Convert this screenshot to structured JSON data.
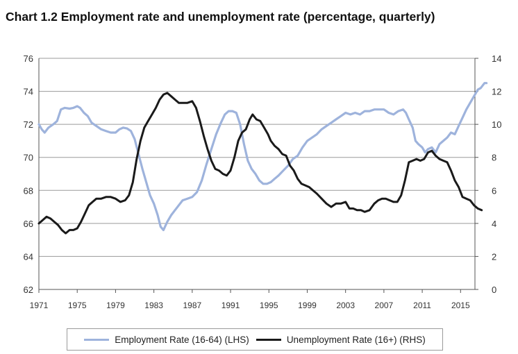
{
  "chart_data": {
    "type": "line",
    "title": "Chart 1.2 Employment rate and unemployment rate (percentage, quarterly)",
    "x_tick_labels": [
      "1971",
      "1975",
      "1979",
      "1983",
      "1987",
      "1991",
      "1995",
      "1999",
      "2003",
      "2007",
      "2011",
      "2015"
    ],
    "x_ticks": [
      1971,
      1975,
      1979,
      1983,
      1987,
      1991,
      1995,
      1999,
      2003,
      2007,
      2011,
      2015
    ],
    "xlim": [
      1971,
      2016.5
    ],
    "y_left": {
      "lim": [
        62,
        76
      ],
      "ticks": [
        62,
        64,
        66,
        68,
        70,
        72,
        74,
        76
      ],
      "tick_labels": [
        "62",
        "64",
        "66",
        "68",
        "70",
        "72",
        "74",
        "76"
      ]
    },
    "y_right": {
      "lim": [
        0,
        14
      ],
      "ticks": [
        0,
        2,
        4,
        6,
        8,
        10,
        12,
        14
      ],
      "tick_labels": [
        "0",
        "2",
        "4",
        "6",
        "8",
        "10",
        "12",
        "14"
      ]
    },
    "grid": "horizontal",
    "legend_position": "bottom",
    "colors": {
      "employment": "#9eb3dc",
      "unemployment": "#1a1a1a",
      "grid": "#9a9a9a"
    },
    "series": [
      {
        "name": "Employment Rate (16-64) (LHS)",
        "axis": "left",
        "points": [
          [
            1971.0,
            72.0
          ],
          [
            1971.3,
            71.7
          ],
          [
            1971.6,
            71.5
          ],
          [
            1972.0,
            71.8
          ],
          [
            1972.5,
            72.0
          ],
          [
            1972.9,
            72.2
          ],
          [
            1973.3,
            72.9
          ],
          [
            1973.7,
            73.0
          ],
          [
            1974.2,
            72.95
          ],
          [
            1974.6,
            73.0
          ],
          [
            1975.0,
            73.1
          ],
          [
            1975.3,
            73.0
          ],
          [
            1975.7,
            72.7
          ],
          [
            1976.1,
            72.5
          ],
          [
            1976.5,
            72.1
          ],
          [
            1977.0,
            71.9
          ],
          [
            1977.5,
            71.7
          ],
          [
            1978.0,
            71.6
          ],
          [
            1978.5,
            71.5
          ],
          [
            1979.0,
            71.5
          ],
          [
            1979.4,
            71.7
          ],
          [
            1979.8,
            71.8
          ],
          [
            1980.2,
            71.75
          ],
          [
            1980.6,
            71.6
          ],
          [
            1981.0,
            71.1
          ],
          [
            1981.4,
            70.2
          ],
          [
            1981.8,
            69.3
          ],
          [
            1982.2,
            68.5
          ],
          [
            1982.6,
            67.7
          ],
          [
            1983.0,
            67.2
          ],
          [
            1983.4,
            66.5
          ],
          [
            1983.7,
            65.8
          ],
          [
            1984.0,
            65.6
          ],
          [
            1984.4,
            66.1
          ],
          [
            1984.8,
            66.5
          ],
          [
            1985.2,
            66.8
          ],
          [
            1985.6,
            67.1
          ],
          [
            1986.0,
            67.4
          ],
          [
            1986.5,
            67.5
          ],
          [
            1987.0,
            67.6
          ],
          [
            1987.5,
            67.9
          ],
          [
            1988.0,
            68.6
          ],
          [
            1988.5,
            69.6
          ],
          [
            1989.0,
            70.5
          ],
          [
            1989.5,
            71.4
          ],
          [
            1990.0,
            72.1
          ],
          [
            1990.4,
            72.6
          ],
          [
            1990.8,
            72.8
          ],
          [
            1991.2,
            72.8
          ],
          [
            1991.6,
            72.7
          ],
          [
            1992.0,
            72.0
          ],
          [
            1992.4,
            70.8
          ],
          [
            1992.8,
            69.8
          ],
          [
            1993.2,
            69.3
          ],
          [
            1993.6,
            69.0
          ],
          [
            1994.0,
            68.6
          ],
          [
            1994.4,
            68.4
          ],
          [
            1994.8,
            68.4
          ],
          [
            1995.2,
            68.5
          ],
          [
            1995.6,
            68.7
          ],
          [
            1996.0,
            68.9
          ],
          [
            1996.5,
            69.2
          ],
          [
            1997.0,
            69.5
          ],
          [
            1997.5,
            69.9
          ],
          [
            1998.0,
            70.1
          ],
          [
            1998.5,
            70.6
          ],
          [
            1999.0,
            71.0
          ],
          [
            1999.5,
            71.2
          ],
          [
            2000.0,
            71.4
          ],
          [
            2000.5,
            71.7
          ],
          [
            2001.0,
            71.9
          ],
          [
            2001.5,
            72.1
          ],
          [
            2002.0,
            72.3
          ],
          [
            2002.5,
            72.5
          ],
          [
            2003.0,
            72.7
          ],
          [
            2003.5,
            72.6
          ],
          [
            2004.0,
            72.7
          ],
          [
            2004.5,
            72.6
          ],
          [
            2005.0,
            72.8
          ],
          [
            2005.5,
            72.8
          ],
          [
            2006.0,
            72.9
          ],
          [
            2006.5,
            72.9
          ],
          [
            2007.0,
            72.9
          ],
          [
            2007.5,
            72.7
          ],
          [
            2008.0,
            72.6
          ],
          [
            2008.5,
            72.8
          ],
          [
            2009.0,
            72.9
          ],
          [
            2009.3,
            72.7
          ],
          [
            2009.6,
            72.3
          ],
          [
            2010.0,
            71.8
          ],
          [
            2010.3,
            71.0
          ],
          [
            2010.6,
            70.8
          ],
          [
            2011.0,
            70.6
          ],
          [
            2011.3,
            70.3
          ],
          [
            2011.6,
            70.5
          ],
          [
            2012.0,
            70.6
          ],
          [
            2012.4,
            70.3
          ],
          [
            2012.8,
            70.8
          ],
          [
            2013.2,
            71.0
          ],
          [
            2013.6,
            71.2
          ],
          [
            2014.0,
            71.5
          ],
          [
            2014.4,
            71.4
          ],
          [
            2014.8,
            71.9
          ],
          [
            2015.2,
            72.4
          ],
          [
            2015.6,
            72.9
          ],
          [
            2016.0,
            73.3
          ],
          [
            2016.4,
            73.7
          ],
          [
            2016.8,
            74.1
          ],
          [
            2017.1,
            74.2
          ],
          [
            2017.5,
            74.5
          ],
          [
            2017.7,
            74.5
          ]
        ]
      },
      {
        "name": "Unemployment Rate (16+) (RHS)",
        "axis": "right",
        "points": [
          [
            1971.0,
            4.0
          ],
          [
            1971.4,
            4.2
          ],
          [
            1971.8,
            4.4
          ],
          [
            1972.2,
            4.3
          ],
          [
            1972.6,
            4.1
          ],
          [
            1973.0,
            3.9
          ],
          [
            1973.4,
            3.6
          ],
          [
            1973.8,
            3.4
          ],
          [
            1974.2,
            3.6
          ],
          [
            1974.6,
            3.6
          ],
          [
            1975.0,
            3.7
          ],
          [
            1975.4,
            4.1
          ],
          [
            1975.8,
            4.6
          ],
          [
            1976.2,
            5.1
          ],
          [
            1976.6,
            5.3
          ],
          [
            1977.0,
            5.5
          ],
          [
            1977.5,
            5.5
          ],
          [
            1978.0,
            5.6
          ],
          [
            1978.5,
            5.6
          ],
          [
            1979.0,
            5.5
          ],
          [
            1979.5,
            5.3
          ],
          [
            1980.0,
            5.4
          ],
          [
            1980.4,
            5.7
          ],
          [
            1980.8,
            6.5
          ],
          [
            1981.2,
            7.9
          ],
          [
            1981.6,
            9.0
          ],
          [
            1982.0,
            9.8
          ],
          [
            1982.4,
            10.2
          ],
          [
            1982.8,
            10.6
          ],
          [
            1983.2,
            11.0
          ],
          [
            1983.6,
            11.5
          ],
          [
            1984.0,
            11.8
          ],
          [
            1984.4,
            11.9
          ],
          [
            1984.8,
            11.7
          ],
          [
            1985.2,
            11.5
          ],
          [
            1985.6,
            11.3
          ],
          [
            1986.0,
            11.3
          ],
          [
            1986.5,
            11.3
          ],
          [
            1987.0,
            11.4
          ],
          [
            1987.4,
            11.0
          ],
          [
            1987.8,
            10.2
          ],
          [
            1988.2,
            9.3
          ],
          [
            1988.6,
            8.5
          ],
          [
            1989.0,
            7.8
          ],
          [
            1989.4,
            7.3
          ],
          [
            1989.8,
            7.2
          ],
          [
            1990.2,
            7.0
          ],
          [
            1990.6,
            6.9
          ],
          [
            1991.0,
            7.2
          ],
          [
            1991.4,
            8.0
          ],
          [
            1991.8,
            9.0
          ],
          [
            1992.2,
            9.5
          ],
          [
            1992.6,
            9.7
          ],
          [
            1993.0,
            10.3
          ],
          [
            1993.3,
            10.6
          ],
          [
            1993.7,
            10.3
          ],
          [
            1994.1,
            10.2
          ],
          [
            1994.5,
            9.8
          ],
          [
            1994.9,
            9.4
          ],
          [
            1995.2,
            9.0
          ],
          [
            1995.6,
            8.7
          ],
          [
            1996.0,
            8.5
          ],
          [
            1996.4,
            8.2
          ],
          [
            1996.8,
            8.1
          ],
          [
            1997.2,
            7.5
          ],
          [
            1997.6,
            7.2
          ],
          [
            1998.0,
            6.7
          ],
          [
            1998.4,
            6.4
          ],
          [
            1998.8,
            6.3
          ],
          [
            1999.2,
            6.2
          ],
          [
            1999.6,
            6.0
          ],
          [
            2000.0,
            5.8
          ],
          [
            2000.5,
            5.5
          ],
          [
            2001.0,
            5.2
          ],
          [
            2001.5,
            5.0
          ],
          [
            2002.0,
            5.2
          ],
          [
            2002.5,
            5.2
          ],
          [
            2003.0,
            5.3
          ],
          [
            2003.4,
            4.9
          ],
          [
            2003.8,
            4.9
          ],
          [
            2004.2,
            4.8
          ],
          [
            2004.6,
            4.8
          ],
          [
            2005.0,
            4.7
          ],
          [
            2005.5,
            4.8
          ],
          [
            2006.0,
            5.2
          ],
          [
            2006.4,
            5.4
          ],
          [
            2006.8,
            5.5
          ],
          [
            2007.2,
            5.5
          ],
          [
            2007.6,
            5.4
          ],
          [
            2008.0,
            5.3
          ],
          [
            2008.4,
            5.3
          ],
          [
            2008.8,
            5.7
          ],
          [
            2009.2,
            6.6
          ],
          [
            2009.6,
            7.7
          ],
          [
            2010.0,
            7.8
          ],
          [
            2010.4,
            7.9
          ],
          [
            2010.8,
            7.8
          ],
          [
            2011.2,
            7.9
          ],
          [
            2011.6,
            8.3
          ],
          [
            2012.0,
            8.4
          ],
          [
            2012.4,
            8.1
          ],
          [
            2012.8,
            7.9
          ],
          [
            2013.2,
            7.8
          ],
          [
            2013.6,
            7.7
          ],
          [
            2014.0,
            7.2
          ],
          [
            2014.4,
            6.6
          ],
          [
            2014.8,
            6.2
          ],
          [
            2015.2,
            5.6
          ],
          [
            2015.6,
            5.5
          ],
          [
            2016.0,
            5.4
          ],
          [
            2016.4,
            5.1
          ],
          [
            2016.8,
            4.9
          ],
          [
            2017.2,
            4.8
          ]
        ]
      }
    ]
  }
}
